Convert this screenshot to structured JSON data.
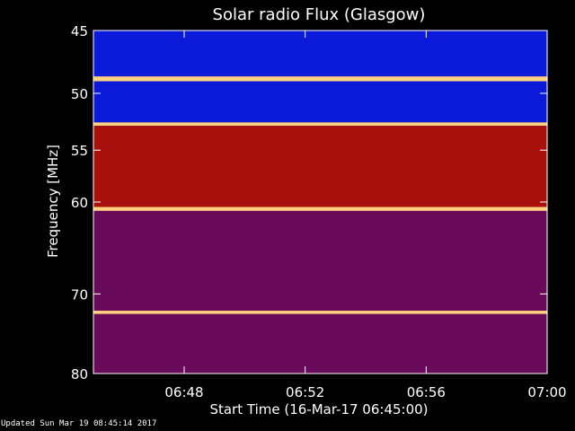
{
  "chart_data": {
    "type": "heatmap",
    "title": "Solar radio Flux (Glasgow)",
    "xlabel": "Start Time (16-Mar-17 06:45:00)",
    "ylabel": "Frequency [MHz]",
    "x_range": [
      "06:45",
      "07:00"
    ],
    "ylim": [
      45,
      80
    ],
    "y_scale": "log",
    "x_ticks": [
      "06:48",
      "06:52",
      "06:56",
      "07:00"
    ],
    "y_ticks": [
      45,
      50,
      55,
      60,
      70,
      80
    ],
    "bands": [
      {
        "from": 45.0,
        "to": 48.6,
        "level": "low"
      },
      {
        "from": 48.6,
        "to": 49.0,
        "level": "peak"
      },
      {
        "from": 49.0,
        "to": 52.5,
        "level": "low"
      },
      {
        "from": 52.5,
        "to": 52.8,
        "level": "peak"
      },
      {
        "from": 52.8,
        "to": 60.5,
        "level": "high"
      },
      {
        "from": 60.5,
        "to": 60.9,
        "level": "peak"
      },
      {
        "from": 60.9,
        "to": 72.0,
        "level": "mid"
      },
      {
        "from": 72.0,
        "to": 72.4,
        "level": "peak"
      },
      {
        "from": 72.4,
        "to": 80.0,
        "level": "mid"
      }
    ],
    "colors": {
      "low": "#0a1ad8",
      "mid": "#6a0a5a",
      "high": "#a8100e",
      "peak": "#ffd080"
    }
  },
  "footer": {
    "updated": "Updated Sun Mar 19 08:45:14 2017"
  }
}
